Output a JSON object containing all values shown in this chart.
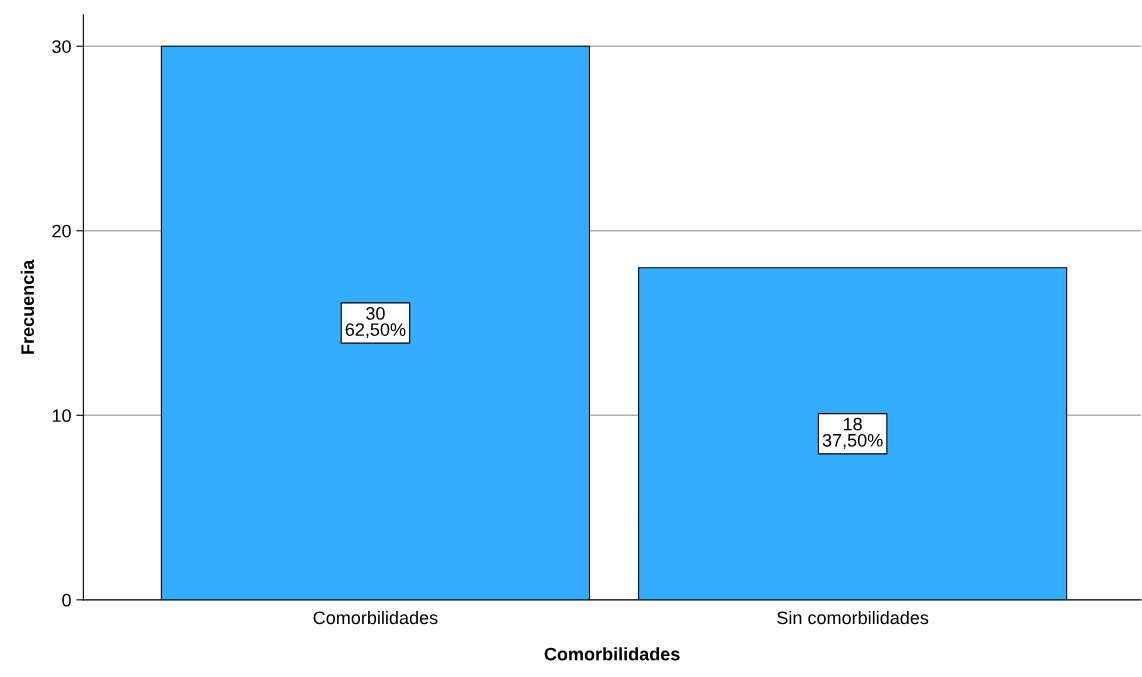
{
  "chart_data": {
    "type": "bar",
    "xlabel": "Comorbilidades",
    "ylabel": "Frecuencia",
    "categories": [
      "Comorbilidades",
      "Sin comorbilidades"
    ],
    "values": [
      30,
      18
    ],
    "color": "#33adff",
    "value_labels": [
      "30\n62,50%",
      "18\n37,50%"
    ],
    "ylim": [
      0,
      31.7
    ],
    "yticks": [
      0,
      10,
      20,
      30
    ],
    "grid": "y",
    "legend": false
  }
}
